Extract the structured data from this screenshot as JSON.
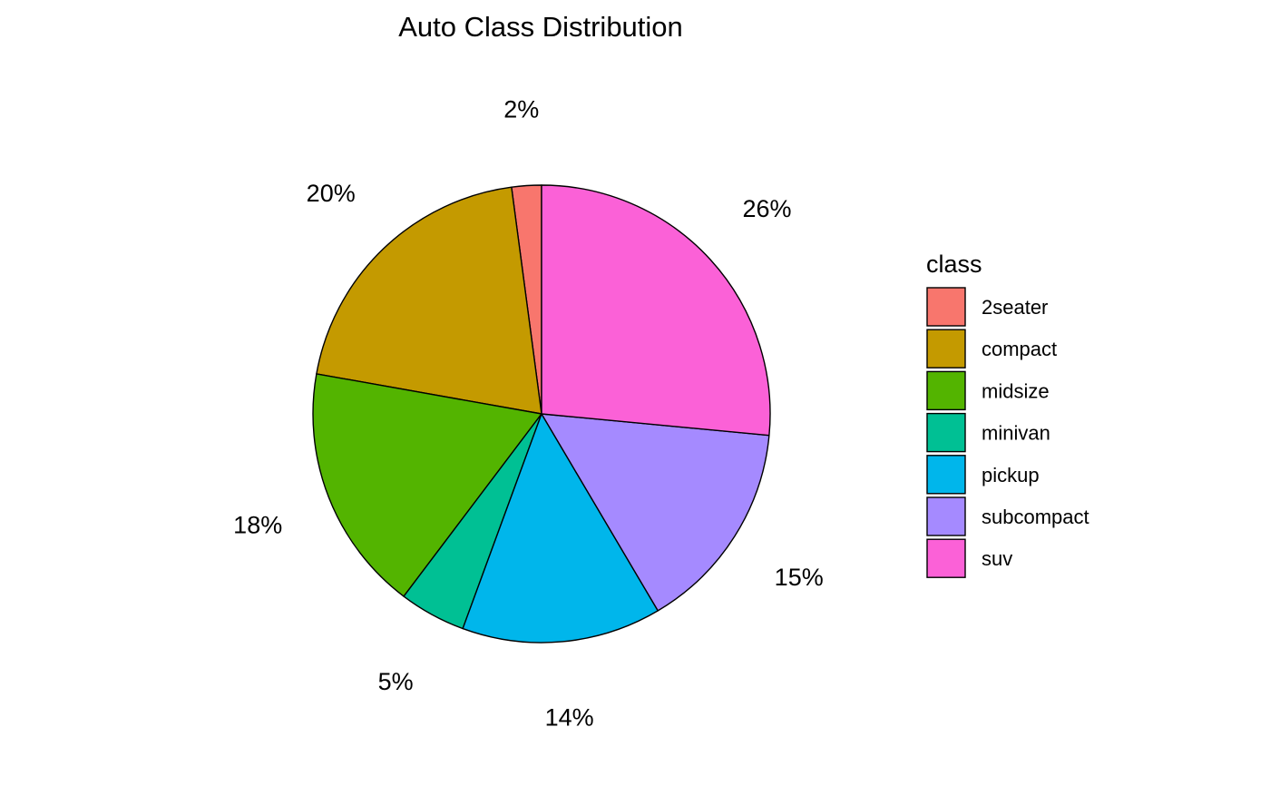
{
  "chart_data": {
    "type": "pie",
    "title": "Auto Class Distribution",
    "legend_title": "class",
    "legend_position": "right",
    "start_angle_deg": 0,
    "direction": "counterclockwise",
    "slices": [
      {
        "label": "2seater",
        "value": 2.1,
        "display": "2%",
        "color": "#F8766D"
      },
      {
        "label": "compact",
        "value": 20.1,
        "display": "20%",
        "color": "#C49A00"
      },
      {
        "label": "midsize",
        "value": 17.5,
        "display": "18%",
        "color": "#53B400"
      },
      {
        "label": "minivan",
        "value": 4.7,
        "display": "5%",
        "color": "#00C094"
      },
      {
        "label": "pickup",
        "value": 14.1,
        "display": "14%",
        "color": "#00B6EB"
      },
      {
        "label": "subcompact",
        "value": 15.0,
        "display": "15%",
        "color": "#A58AFF"
      },
      {
        "label": "suv",
        "value": 26.5,
        "display": "26%",
        "color": "#FB61D7"
      }
    ]
  }
}
